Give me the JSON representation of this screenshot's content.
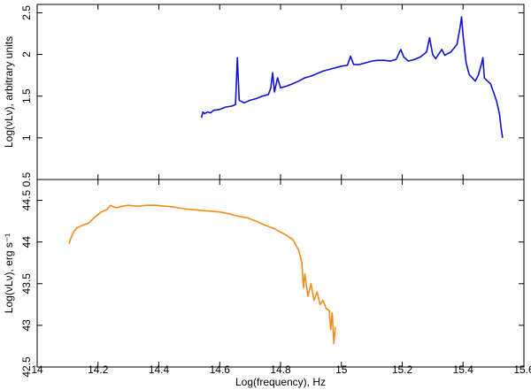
{
  "chart_data": [
    {
      "type": "line",
      "panel": "top",
      "ylabel": "Log(νLν), arbitrary units",
      "ylim": [
        0.5,
        2.6
      ],
      "xlim": [
        14.0,
        15.6
      ],
      "y_ticks": [
        0.5,
        1,
        1.5,
        2,
        2.5
      ],
      "y_tick_labels": [
        "0.5",
        "1",
        "1.5",
        "2",
        "2.5"
      ],
      "series": [
        {
          "color": "#1010d8",
          "points": [
            [
              14.54,
              1.24
            ],
            [
              14.545,
              1.31
            ],
            [
              14.55,
              1.29
            ],
            [
              14.56,
              1.31
            ],
            [
              14.57,
              1.3
            ],
            [
              14.58,
              1.33
            ],
            [
              14.6,
              1.34
            ],
            [
              14.62,
              1.37
            ],
            [
              14.64,
              1.38
            ],
            [
              14.652,
              1.4
            ],
            [
              14.658,
              1.96
            ],
            [
              14.664,
              1.45
            ],
            [
              14.68,
              1.42
            ],
            [
              14.7,
              1.45
            ],
            [
              14.72,
              1.47
            ],
            [
              14.74,
              1.5
            ],
            [
              14.76,
              1.52
            ],
            [
              14.768,
              1.6
            ],
            [
              14.774,
              1.78
            ],
            [
              14.78,
              1.55
            ],
            [
              14.79,
              1.72
            ],
            [
              14.8,
              1.6
            ],
            [
              14.82,
              1.62
            ],
            [
              14.84,
              1.65
            ],
            [
              14.86,
              1.68
            ],
            [
              14.88,
              1.72
            ],
            [
              14.9,
              1.74
            ],
            [
              14.92,
              1.77
            ],
            [
              14.94,
              1.8
            ],
            [
              14.96,
              1.82
            ],
            [
              14.98,
              1.84
            ],
            [
              15.0,
              1.86
            ],
            [
              15.02,
              1.87
            ],
            [
              15.03,
              1.98
            ],
            [
              15.04,
              1.88
            ],
            [
              15.06,
              1.88
            ],
            [
              15.08,
              1.9
            ],
            [
              15.1,
              1.92
            ],
            [
              15.12,
              1.93
            ],
            [
              15.14,
              1.93
            ],
            [
              15.16,
              1.92
            ],
            [
              15.18,
              1.94
            ],
            [
              15.195,
              2.06
            ],
            [
              15.205,
              1.97
            ],
            [
              15.22,
              1.92
            ],
            [
              15.24,
              1.94
            ],
            [
              15.26,
              1.97
            ],
            [
              15.28,
              2.03
            ],
            [
              15.29,
              2.2
            ],
            [
              15.3,
              2.0
            ],
            [
              15.31,
              1.95
            ],
            [
              15.33,
              2.06
            ],
            [
              15.34,
              1.99
            ],
            [
              15.36,
              2.03
            ],
            [
              15.38,
              2.12
            ],
            [
              15.39,
              2.32
            ],
            [
              15.395,
              2.45
            ],
            [
              15.4,
              2.22
            ],
            [
              15.41,
              1.9
            ],
            [
              15.42,
              1.76
            ],
            [
              15.43,
              1.72
            ],
            [
              15.44,
              1.68
            ],
            [
              15.45,
              1.75
            ],
            [
              15.46,
              1.88
            ],
            [
              15.465,
              1.96
            ],
            [
              15.47,
              1.72
            ],
            [
              15.48,
              1.68
            ],
            [
              15.49,
              1.65
            ],
            [
              15.5,
              1.55
            ],
            [
              15.51,
              1.44
            ],
            [
              15.52,
              1.28
            ],
            [
              15.525,
              1.12
            ],
            [
              15.53,
              1.0
            ]
          ]
        }
      ]
    },
    {
      "type": "line",
      "panel": "bottom",
      "ylabel": "Log(νLν), erg s⁻¹",
      "xlabel": "Log(frequency), Hz",
      "ylim": [
        42.5,
        44.75
      ],
      "xlim": [
        14.0,
        15.6
      ],
      "y_ticks": [
        42.5,
        43,
        43.5,
        44,
        44.5
      ],
      "y_tick_labels": [
        "42.5",
        "43",
        "43.5",
        "44",
        "44.5"
      ],
      "x_ticks": [
        14.0,
        14.2,
        14.4,
        14.6,
        14.8,
        15.0,
        15.2,
        15.4,
        15.6
      ],
      "x_tick_labels": [
        "14",
        "14.2",
        "14.4",
        "14.6",
        "14.8",
        "15",
        "15.2",
        "15.4",
        "15.6"
      ],
      "series": [
        {
          "color": "#f08c1c",
          "points": [
            [
              14.105,
              43.98
            ],
            [
              14.11,
              44.04
            ],
            [
              14.12,
              44.12
            ],
            [
              14.13,
              44.17
            ],
            [
              14.15,
              44.2
            ],
            [
              14.17,
              44.23
            ],
            [
              14.19,
              44.3
            ],
            [
              14.21,
              44.36
            ],
            [
              14.23,
              44.39
            ],
            [
              14.24,
              44.44
            ],
            [
              14.26,
              44.41
            ],
            [
              14.28,
              44.43
            ],
            [
              14.3,
              44.44
            ],
            [
              14.33,
              44.43
            ],
            [
              14.36,
              44.44
            ],
            [
              14.39,
              44.44
            ],
            [
              14.42,
              44.43
            ],
            [
              14.45,
              44.42
            ],
            [
              14.48,
              44.4
            ],
            [
              14.51,
              44.39
            ],
            [
              14.54,
              44.38
            ],
            [
              14.57,
              44.37
            ],
            [
              14.6,
              44.36
            ],
            [
              14.63,
              44.34
            ],
            [
              14.66,
              44.31
            ],
            [
              14.69,
              44.29
            ],
            [
              14.72,
              44.25
            ],
            [
              14.75,
              44.2
            ],
            [
              14.78,
              44.16
            ],
            [
              14.8,
              44.12
            ],
            [
              14.82,
              44.08
            ],
            [
              14.84,
              44.03
            ],
            [
              14.86,
              43.9
            ],
            [
              14.87,
              43.75
            ],
            [
              14.875,
              43.45
            ],
            [
              14.88,
              43.62
            ],
            [
              14.89,
              43.35
            ],
            [
              14.9,
              43.5
            ],
            [
              14.91,
              43.3
            ],
            [
              14.92,
              43.4
            ],
            [
              14.93,
              43.25
            ],
            [
              14.94,
              43.3
            ],
            [
              14.95,
              43.2
            ],
            [
              14.96,
              43.18
            ],
            [
              14.965,
              42.95
            ],
            [
              14.97,
              43.15
            ],
            [
              14.975,
              42.78
            ],
            [
              14.98,
              42.98
            ]
          ]
        }
      ]
    }
  ]
}
